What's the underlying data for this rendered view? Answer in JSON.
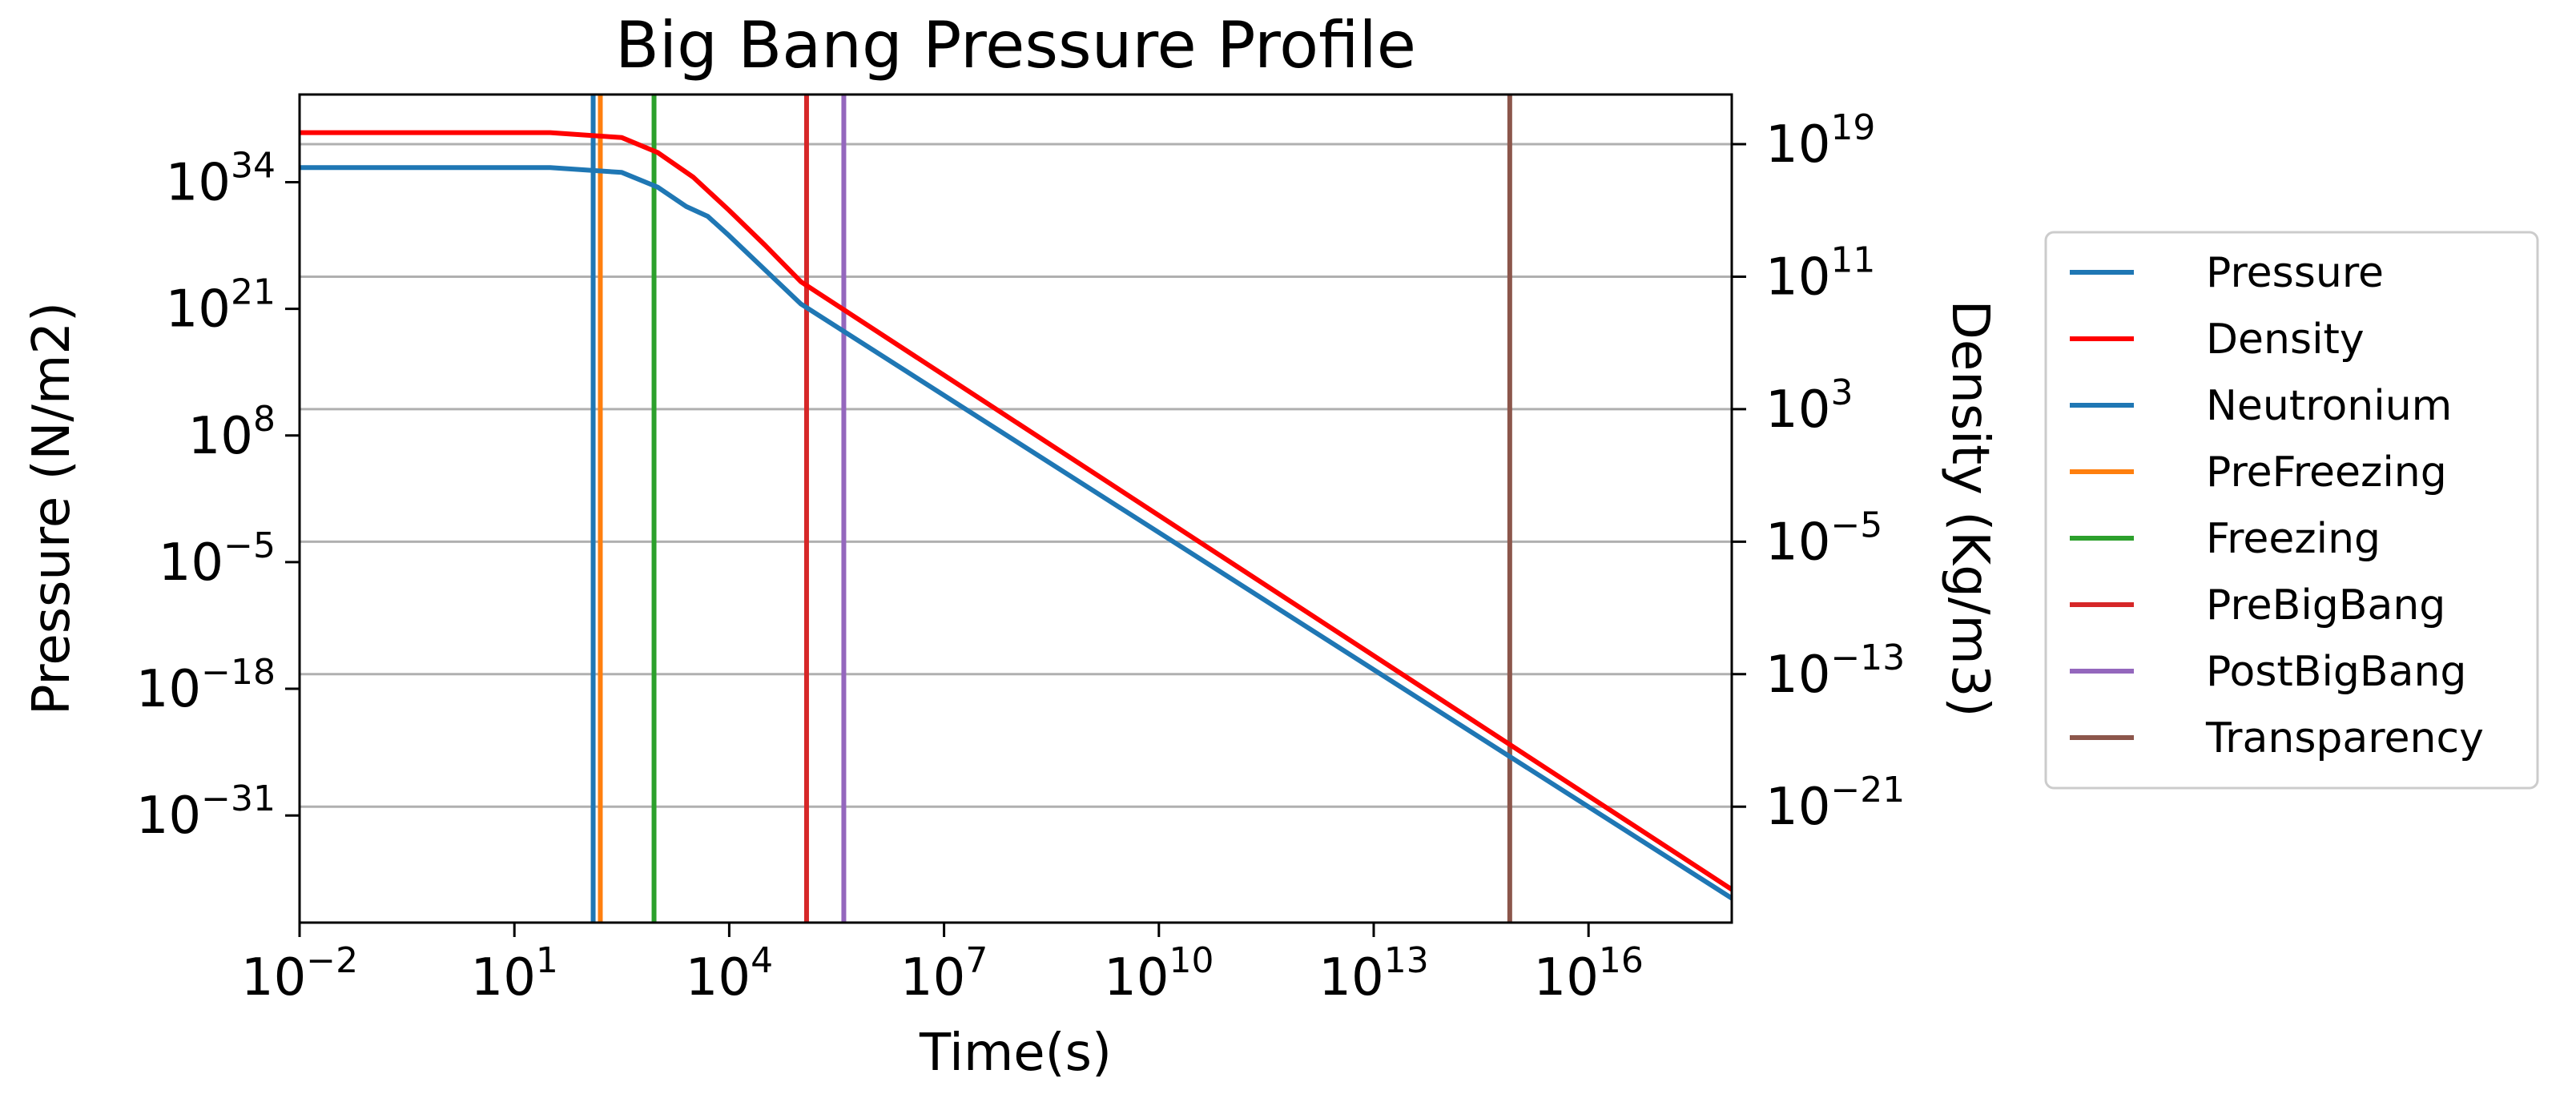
{
  "chart_data": {
    "type": "line",
    "title": "Big Bang Pressure Profile",
    "xlabel": "Time(s)",
    "ylabel": "Pressure (N/m2)",
    "y2label": "Density (Kg/m3)",
    "xscale": "log",
    "yscale": "log",
    "y2scale": "log",
    "xlim_exp": [
      -2,
      18
    ],
    "ylim_exp": [
      -42,
      43
    ],
    "y2lim_exp": [
      -28,
      22
    ],
    "x_ticks": [
      {
        "base": "10",
        "exp": "−2"
      },
      {
        "base": "10",
        "exp": "1"
      },
      {
        "base": "10",
        "exp": "4"
      },
      {
        "base": "10",
        "exp": "7"
      },
      {
        "base": "10",
        "exp": "10"
      },
      {
        "base": "10",
        "exp": "13"
      },
      {
        "base": "10",
        "exp": "16"
      }
    ],
    "x_tick_exp": [
      -2,
      1,
      4,
      7,
      10,
      13,
      16
    ],
    "y_ticks": [
      {
        "base": "10",
        "exp": "34"
      },
      {
        "base": "10",
        "exp": "21"
      },
      {
        "base": "10",
        "exp": "8"
      },
      {
        "base": "10",
        "exp": "−5"
      },
      {
        "base": "10",
        "exp": "−18"
      },
      {
        "base": "10",
        "exp": "−31"
      }
    ],
    "y_tick_exp": [
      34,
      21,
      8,
      -5,
      -18,
      -31
    ],
    "y2_ticks": [
      {
        "base": "10",
        "exp": "19"
      },
      {
        "base": "10",
        "exp": "11"
      },
      {
        "base": "10",
        "exp": "3"
      },
      {
        "base": "10",
        "exp": "−5"
      },
      {
        "base": "10",
        "exp": "−13"
      },
      {
        "base": "10",
        "exp": "−21"
      }
    ],
    "y2_tick_exp": [
      19,
      11,
      3,
      -5,
      -13,
      -21
    ],
    "grid": "horizontal, right axis",
    "legend_position": "outside right",
    "series": [
      {
        "name": "Pressure",
        "axis": "left",
        "color": "#1f77b4",
        "x_exp": [
          -2,
          1.5,
          2.5,
          3.0,
          3.4,
          3.7,
          4.0,
          4.5,
          5.0,
          18
        ],
        "y_exp": [
          35.5,
          35.5,
          35.0,
          33.5,
          31.5,
          30.5,
          28.5,
          25.0,
          21.5,
          -39.5
        ]
      },
      {
        "name": "Density",
        "axis": "right",
        "color": "#ff0000",
        "x_exp": [
          -2,
          1.5,
          2.5,
          3.0,
          3.5,
          4.0,
          4.5,
          5.0,
          18
        ],
        "y_exp": [
          19.7,
          19.7,
          19.4,
          18.5,
          17.0,
          15.0,
          12.9,
          10.7,
          -26.0
        ]
      }
    ],
    "vlines": [
      {
        "name": "Neutronium",
        "x_exp": 2.1,
        "color": "#1f77b4"
      },
      {
        "name": "PreFreezing",
        "x_exp": 2.2,
        "color": "#ff7f0e"
      },
      {
        "name": "Freezing",
        "x_exp": 2.95,
        "color": "#2ca02c"
      },
      {
        "name": "PreBigBang",
        "x_exp": 5.08,
        "color": "#d62728"
      },
      {
        "name": "PostBigBang",
        "x_exp": 5.6,
        "color": "#9467bd"
      },
      {
        "name": "Transparency",
        "x_exp": 14.9,
        "color": "#8c564b"
      }
    ],
    "legend": [
      {
        "name": "Pressure",
        "color": "#1f77b4"
      },
      {
        "name": "Density",
        "color": "#ff0000"
      },
      {
        "name": "Neutronium",
        "color": "#1f77b4"
      },
      {
        "name": "PreFreezing",
        "color": "#ff7f0e"
      },
      {
        "name": "Freezing",
        "color": "#2ca02c"
      },
      {
        "name": "PreBigBang",
        "color": "#d62728"
      },
      {
        "name": "PostBigBang",
        "color": "#9467bd"
      },
      {
        "name": "Transparency",
        "color": "#8c564b"
      }
    ],
    "right_axis_color": "#ff0000"
  }
}
